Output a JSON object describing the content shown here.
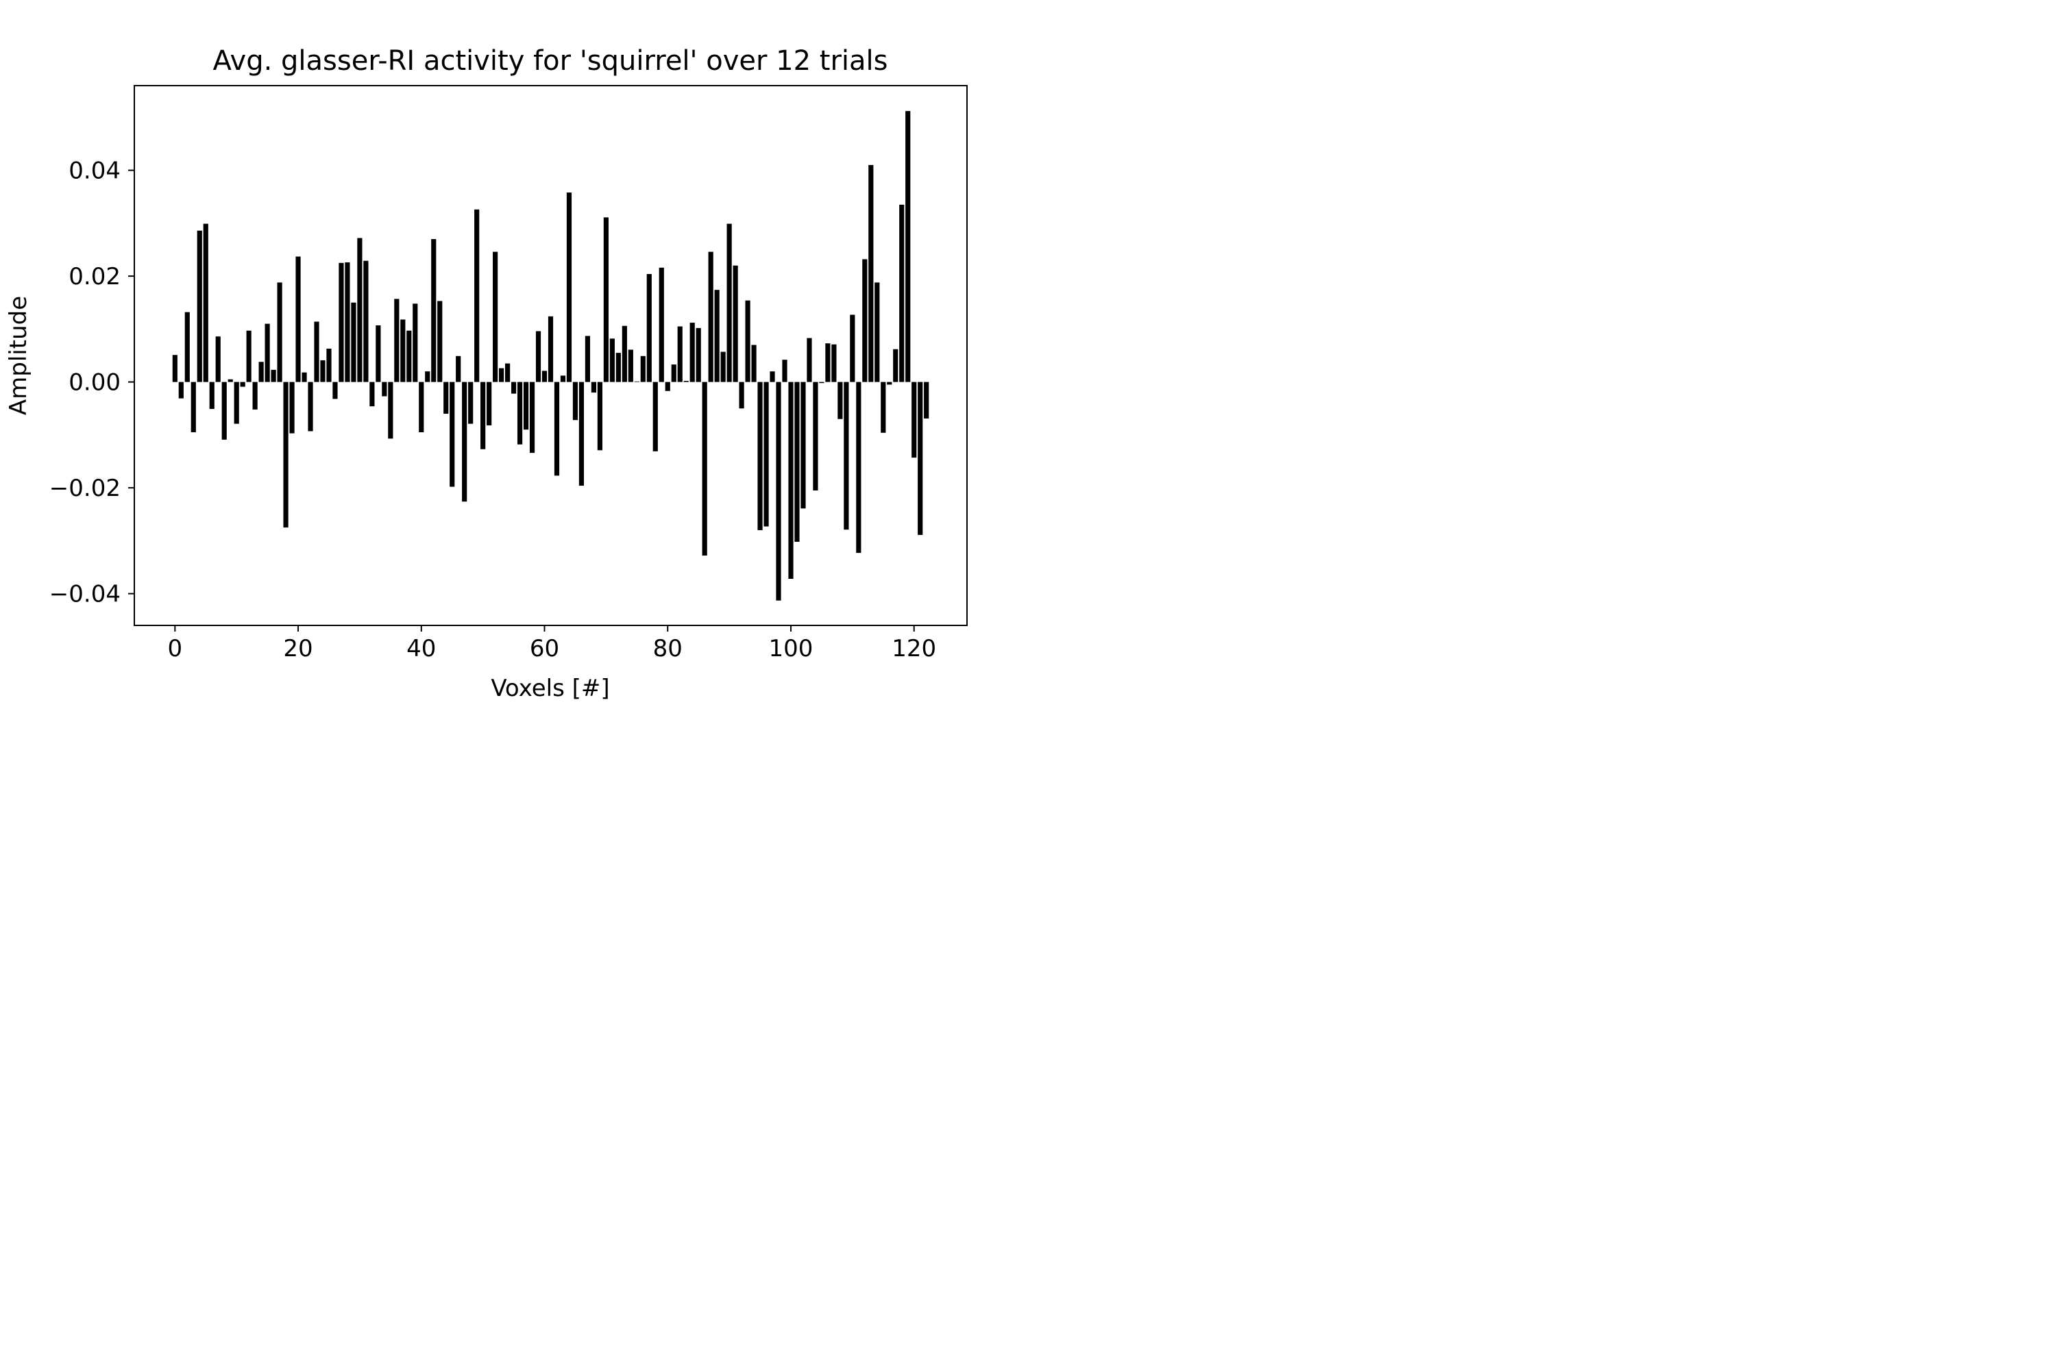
{
  "chart_data": {
    "type": "bar",
    "title": "Avg. glasser-RI activity for 'squirrel' over 12 trials",
    "xlabel": "Voxels [#]",
    "ylabel": "Amplitude",
    "xlim": [
      -6.6,
      128.6
    ],
    "ylim": [
      -0.046,
      0.056
    ],
    "xticks": [
      0,
      20,
      40,
      60,
      80,
      100,
      120
    ],
    "xtick_labels": [
      "0",
      "20",
      "40",
      "60",
      "80",
      "100",
      "120"
    ],
    "yticks": [
      -0.04,
      -0.02,
      0.0,
      0.02,
      0.04
    ],
    "ytick_labels": [
      "−0.04",
      "−0.02",
      "0.00",
      "0.02",
      "0.04"
    ],
    "grid": false,
    "bar_color": "#000000",
    "x": [
      0,
      1,
      2,
      3,
      4,
      5,
      6,
      7,
      8,
      9,
      10,
      11,
      12,
      13,
      14,
      15,
      16,
      17,
      18,
      19,
      20,
      21,
      22,
      23,
      24,
      25,
      26,
      27,
      28,
      29,
      30,
      31,
      32,
      33,
      34,
      35,
      36,
      37,
      38,
      39,
      40,
      41,
      42,
      43,
      44,
      45,
      46,
      47,
      48,
      49,
      50,
      51,
      52,
      53,
      54,
      55,
      56,
      57,
      58,
      59,
      60,
      61,
      62,
      63,
      64,
      65,
      66,
      67,
      68,
      69,
      70,
      71,
      72,
      73,
      74,
      75,
      76,
      77,
      78,
      79,
      80,
      81,
      82,
      83,
      84,
      85,
      86,
      87,
      88,
      89,
      90,
      91,
      92,
      93,
      94,
      95,
      96,
      97,
      98,
      99,
      100,
      101,
      102,
      103,
      104,
      105,
      106,
      107,
      108,
      109,
      110,
      111,
      112,
      113,
      114,
      115,
      116,
      117,
      118,
      119,
      120,
      121,
      122
    ],
    "values": [
      0.0051,
      -0.0031,
      0.0132,
      -0.0095,
      0.0286,
      0.0299,
      -0.0051,
      0.0086,
      -0.0109,
      0.0005,
      -0.0079,
      -0.0009,
      0.0097,
      -0.0052,
      0.0038,
      0.011,
      0.0023,
      0.0188,
      -0.0275,
      -0.0097,
      0.0237,
      0.0018,
      -0.0093,
      0.0114,
      0.0041,
      0.0063,
      -0.0032,
      0.0225,
      0.0226,
      0.015,
      0.0272,
      0.0229,
      -0.0046,
      0.0107,
      -0.0027,
      -0.0107,
      0.0157,
      0.0118,
      0.0097,
      0.0148,
      -0.0095,
      0.002,
      0.027,
      0.0153,
      -0.006,
      -0.0198,
      0.0049,
      -0.0226,
      -0.0079,
      0.0326,
      -0.0127,
      -0.0082,
      0.0246,
      0.0026,
      0.0035,
      -0.0022,
      -0.0118,
      -0.009,
      -0.0134,
      0.0096,
      0.0021,
      0.0124,
      -0.0177,
      0.0012,
      0.0358,
      -0.0072,
      -0.0196,
      0.0087,
      -0.002,
      -0.0129,
      0.0311,
      0.0082,
      0.0055,
      0.0106,
      0.0061,
      0.0001,
      0.0049,
      0.0204,
      -0.0131,
      0.0216,
      -0.0017,
      0.0033,
      0.0105,
      0.0002,
      0.0112,
      0.0102,
      -0.0328,
      0.0246,
      0.0174,
      0.0057,
      0.0299,
      0.022,
      -0.005,
      0.0154,
      0.007,
      -0.028,
      -0.0273,
      0.002,
      -0.0413,
      0.0042,
      -0.0372,
      -0.0302,
      -0.0239,
      0.0083,
      -0.0205,
      -0.0002,
      0.0073,
      0.0071,
      -0.007,
      -0.0279,
      0.0127,
      -0.0323,
      0.0232,
      0.041,
      0.0188,
      -0.0096,
      -0.0005,
      0.0062,
      0.0335,
      0.0512,
      -0.0143,
      -0.0289,
      -0.0069
    ]
  }
}
